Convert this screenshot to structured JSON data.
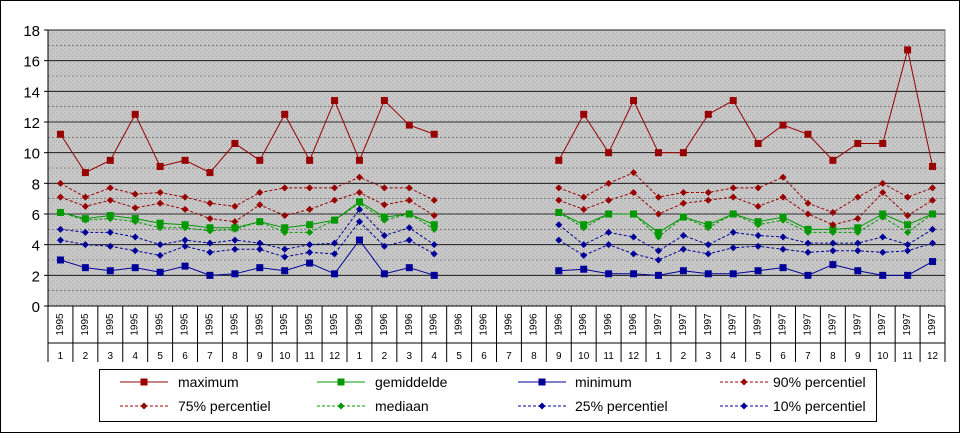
{
  "chart_data": {
    "type": "line",
    "ylim": [
      0,
      18
    ],
    "yticks": [
      0,
      2,
      4,
      6,
      8,
      10,
      12,
      14,
      16,
      18
    ],
    "grid": true,
    "legend_placement": "bottom",
    "x_years": [
      "1995",
      "1995",
      "1995",
      "1995",
      "1995",
      "1995",
      "1995",
      "1995",
      "1995",
      "1995",
      "1995",
      "1995",
      "1996",
      "1996",
      "1996",
      "1996",
      "1996",
      "1996",
      "1996",
      "1996",
      "1996",
      "1996",
      "1996",
      "1996",
      "1997",
      "1997",
      "1997",
      "1997",
      "1997",
      "1997",
      "1997",
      "1997",
      "1997",
      "1997",
      "1997",
      "1997"
    ],
    "x_months": [
      "1",
      "2",
      "3",
      "4",
      "5",
      "6",
      "7",
      "8",
      "9",
      "10",
      "11",
      "12",
      "1",
      "2",
      "3",
      "4",
      "5",
      "6",
      "7",
      "8",
      "9",
      "10",
      "11",
      "12",
      "1",
      "2",
      "3",
      "4",
      "5",
      "6",
      "7",
      "8",
      "9",
      "10",
      "11",
      "12"
    ],
    "series": [
      {
        "name": "maximum",
        "color": "#990000",
        "style": "solid",
        "marker": "square",
        "values": [
          11.2,
          8.7,
          9.5,
          12.5,
          9.1,
          9.5,
          8.7,
          10.6,
          9.5,
          12.5,
          9.5,
          13.4,
          9.5,
          13.4,
          11.8,
          11.2,
          null,
          null,
          null,
          null,
          9.5,
          12.5,
          10.0,
          13.4,
          10.0,
          10.0,
          12.5,
          13.4,
          10.6,
          11.8,
          11.2,
          9.5,
          10.6,
          10.6,
          16.7,
          9.1
        ]
      },
      {
        "name": "gemiddelde",
        "color": "#009900",
        "style": "solid",
        "marker": "square",
        "values": [
          6.1,
          5.7,
          5.9,
          5.7,
          5.4,
          5.3,
          5.1,
          5.1,
          5.5,
          5.1,
          5.3,
          5.6,
          6.8,
          5.8,
          6.0,
          5.3,
          null,
          null,
          null,
          null,
          6.1,
          5.3,
          6.0,
          6.0,
          4.8,
          5.8,
          5.3,
          6.0,
          5.5,
          5.8,
          5.0,
          5.0,
          5.1,
          6.0,
          5.3,
          6.0
        ]
      },
      {
        "name": "minimum",
        "color": "#000099",
        "style": "solid",
        "marker": "square",
        "values": [
          3.0,
          2.5,
          2.3,
          2.5,
          2.2,
          2.6,
          2.0,
          2.1,
          2.5,
          2.3,
          2.8,
          2.1,
          4.3,
          2.1,
          2.5,
          2.0,
          null,
          null,
          null,
          null,
          2.3,
          2.4,
          2.1,
          2.1,
          2.0,
          2.3,
          2.1,
          2.1,
          2.3,
          2.5,
          2.0,
          2.7,
          2.3,
          2.0,
          2.0,
          2.9
        ]
      },
      {
        "name": "90% percentiel",
        "color": "#990000",
        "style": "dashed",
        "marker": "diamond",
        "values": [
          8.0,
          7.1,
          7.7,
          7.3,
          7.4,
          7.1,
          6.7,
          6.5,
          7.4,
          7.7,
          7.7,
          7.7,
          8.4,
          7.7,
          7.7,
          6.9,
          null,
          null,
          null,
          null,
          7.7,
          7.1,
          8.0,
          8.7,
          7.1,
          7.4,
          7.4,
          7.7,
          7.7,
          8.4,
          6.7,
          6.1,
          7.1,
          8.0,
          7.1,
          7.7
        ]
      },
      {
        "name": "75% percentiel",
        "color": "#990000",
        "style": "dashed",
        "marker": "diamond",
        "values": [
          7.1,
          6.5,
          6.9,
          6.4,
          6.7,
          6.3,
          5.7,
          5.5,
          6.6,
          5.9,
          6.3,
          6.9,
          7.4,
          6.6,
          6.9,
          5.9,
          null,
          null,
          null,
          null,
          6.9,
          6.3,
          6.9,
          7.4,
          6.0,
          6.7,
          6.9,
          7.1,
          6.5,
          7.1,
          6.0,
          5.3,
          5.7,
          7.4,
          5.9,
          6.9
        ]
      },
      {
        "name": "mediaan",
        "color": "#009900",
        "style": "dashed",
        "marker": "diamond",
        "values": [
          6.1,
          5.6,
          5.7,
          5.5,
          5.1,
          5.1,
          4.9,
          5.0,
          5.5,
          4.8,
          4.8,
          5.6,
          6.7,
          5.6,
          6.0,
          5.0,
          null,
          null,
          null,
          null,
          6.1,
          5.1,
          6.0,
          6.0,
          4.5,
          5.8,
          5.1,
          6.0,
          5.3,
          5.6,
          4.8,
          4.8,
          4.8,
          5.8,
          4.8,
          6.0
        ]
      },
      {
        "name": "25% percentiel",
        "color": "#000099",
        "style": "dashed",
        "marker": "diamond",
        "values": [
          5.0,
          4.8,
          4.8,
          4.5,
          4.0,
          4.3,
          4.1,
          4.3,
          4.1,
          3.7,
          4.0,
          4.1,
          6.3,
          4.6,
          5.1,
          4.0,
          null,
          null,
          null,
          null,
          5.3,
          4.0,
          4.8,
          4.5,
          3.6,
          4.6,
          4.0,
          4.8,
          4.6,
          4.5,
          4.1,
          4.1,
          4.1,
          4.5,
          4.0,
          5.0
        ]
      },
      {
        "name": "10% percentiel",
        "color": "#000099",
        "style": "dashed",
        "marker": "diamond",
        "values": [
          4.3,
          4.0,
          3.9,
          3.6,
          3.3,
          3.9,
          3.5,
          3.7,
          3.7,
          3.2,
          3.5,
          3.4,
          5.5,
          3.9,
          4.3,
          3.4,
          null,
          null,
          null,
          null,
          4.3,
          3.3,
          4.0,
          3.4,
          3.0,
          3.7,
          3.4,
          3.8,
          3.9,
          3.7,
          3.5,
          3.6,
          3.6,
          3.5,
          3.6,
          4.1
        ]
      }
    ]
  }
}
